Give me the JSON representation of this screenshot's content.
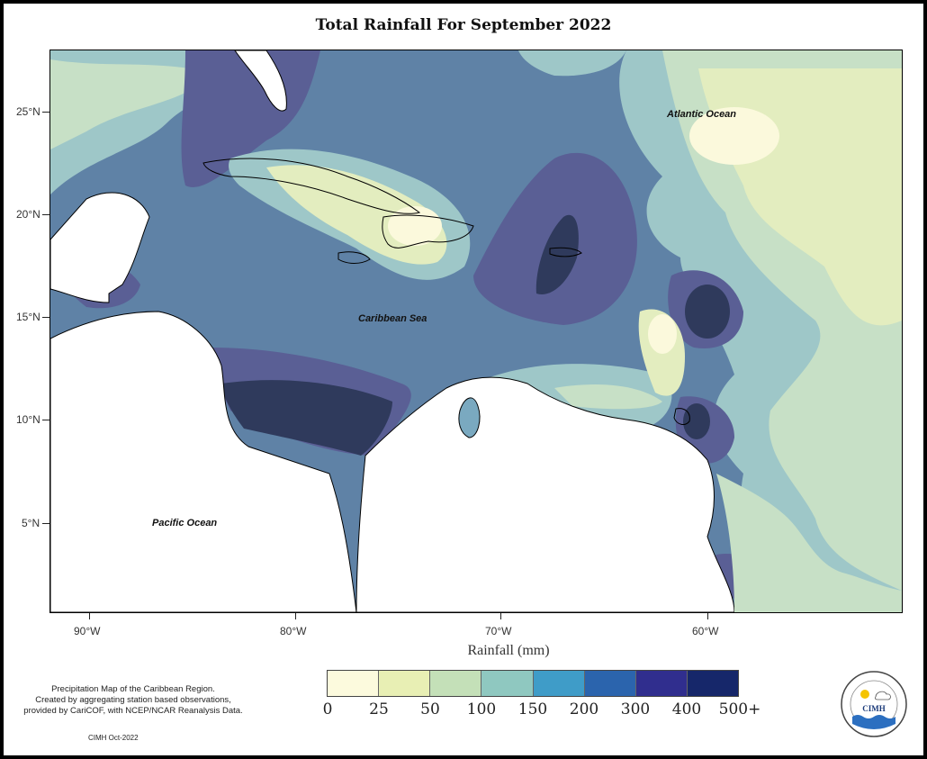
{
  "title": "Total Rainfall For September 2022",
  "y_axis": {
    "ticks": [
      "25°N",
      "20°N",
      "15°N",
      "10°N",
      "5°N"
    ]
  },
  "x_axis": {
    "ticks": [
      "90°W",
      "80°W",
      "70°W",
      "60°W"
    ],
    "label": "Rainfall (mm)"
  },
  "map_labels": {
    "atlantic": "Atlantic Ocean",
    "caribbean": "Caribbean Sea",
    "pacific": "Pacific Ocean"
  },
  "legend": {
    "bins": [
      "0",
      "25",
      "50",
      "100",
      "150",
      "200",
      "300",
      "400",
      "500+"
    ],
    "colors": [
      "#fcfadd",
      "#e8efb4",
      "#c4e0b8",
      "#8fc8c0",
      "#3f9cc8",
      "#2b64ad",
      "#302e8e",
      "#16276a"
    ]
  },
  "map_colors": {
    "land": "#ffffff",
    "rain_0_25": "#fbf9dc",
    "rain_25_50": "#e3edbf",
    "rain_50_100": "#c7e0c6",
    "rain_100_150": "#9ec7c8",
    "rain_150_200": "#7aa9c0",
    "rain_200_300": "#5f82a6",
    "rain_300_400": "#5a5f95",
    "rain_400_500": "#2f3a5c"
  },
  "note": {
    "line1": "Precipitation Map of the Caribbean Region.",
    "line2": "Created by aggregating station based observations,",
    "line3": "provided by CariCOF, with NCEP/NCAR Reanalysis Data."
  },
  "credit": "CIMH Oct-2022",
  "logo": {
    "text": "CIMH",
    "icon": "cimh-logo"
  }
}
